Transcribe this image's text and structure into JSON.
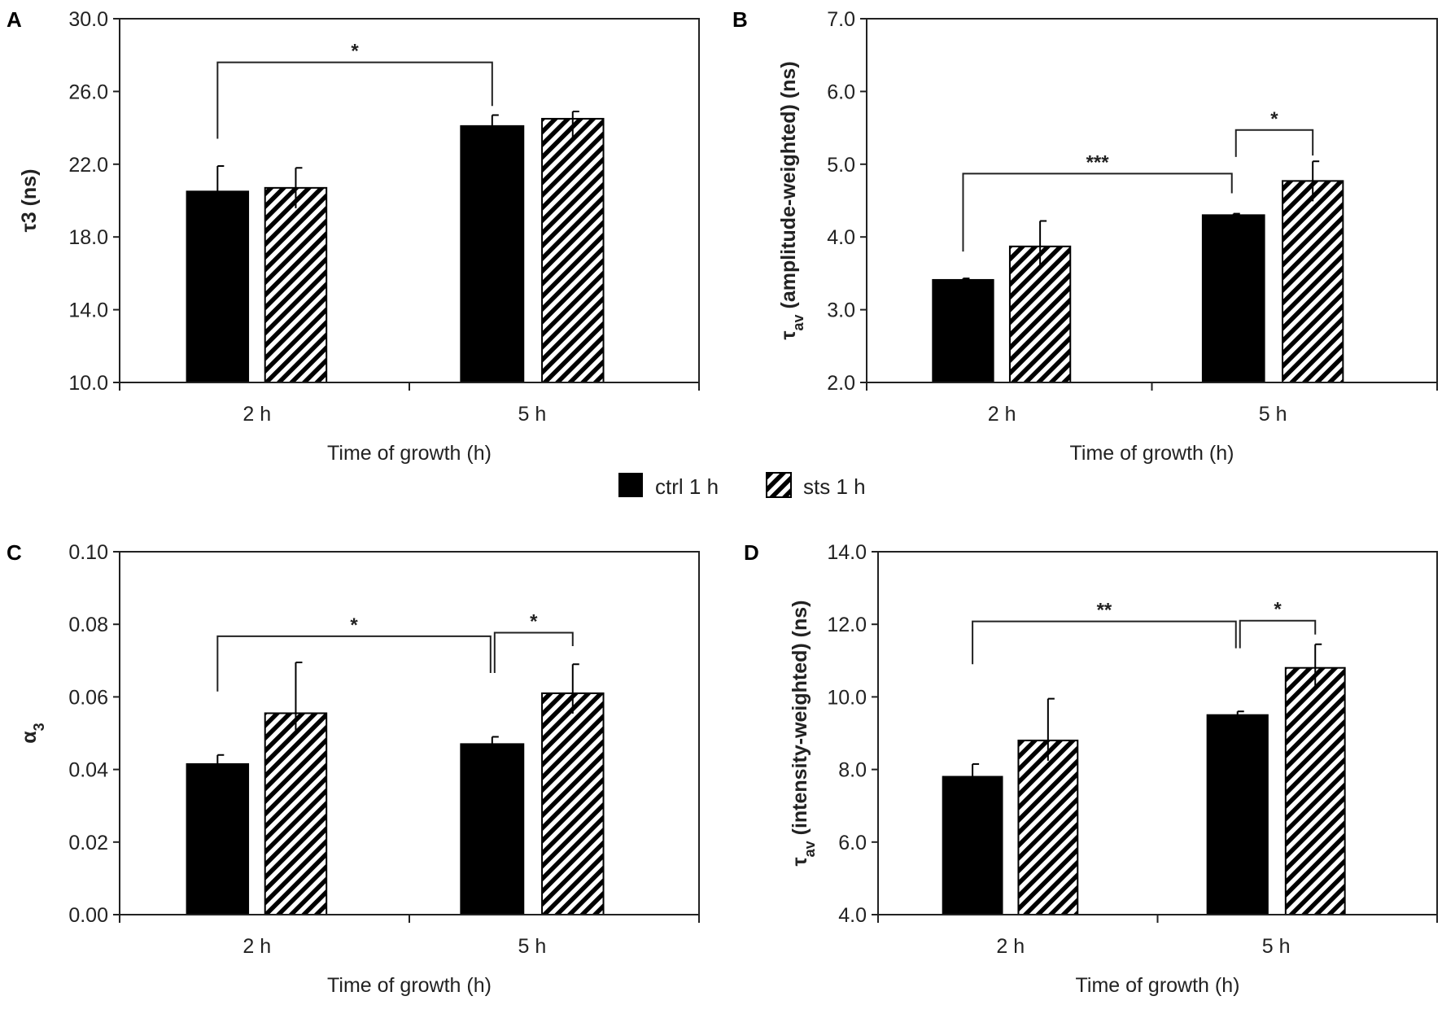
{
  "chart_data": [
    {
      "type": "bar",
      "panel": "A",
      "ylabel": "τ3 (ns)",
      "ylabel_main": "τ",
      "ylabel_sub": "3",
      "ylabel_rest": " (ns)",
      "xlabel": "Time of growth (h)",
      "categories": [
        "2 h",
        "5 h"
      ],
      "ylim": [
        10,
        30
      ],
      "yticks": [
        "10.0",
        "14.0",
        "18.0",
        "22.0",
        "26.0",
        "30.0"
      ],
      "series": [
        {
          "name": "ctrl 1 h",
          "values": [
            20.5,
            24.1
          ],
          "errors": [
            1.4,
            0.6
          ]
        },
        {
          "name": "sts 1 h",
          "values": [
            20.7,
            24.5
          ],
          "errors": [
            1.1,
            0.4
          ]
        }
      ],
      "significance": [
        {
          "from": [
            0,
            0
          ],
          "to": [
            1,
            0
          ],
          "label": "*",
          "level": 27.6,
          "legs": [
            23.4,
            25.2
          ]
        }
      ]
    },
    {
      "type": "bar",
      "panel": "B",
      "ylabel": "τav (amplitude-weighted) (ns)",
      "ylabel_main": "τ",
      "ylabel_sub": "av",
      "ylabel_rest": " (amplitude-weighted) (ns)",
      "xlabel": "Time of growth (h)",
      "categories": [
        "2 h",
        "5 h"
      ],
      "ylim": [
        2,
        7
      ],
      "yticks": [
        "2.0",
        "3.0",
        "4.0",
        "5.0",
        "6.0",
        "7.0"
      ],
      "series": [
        {
          "name": "ctrl 1 h",
          "values": [
            3.41,
            4.3
          ],
          "errors": [
            0.02,
            0.02
          ]
        },
        {
          "name": "sts 1 h",
          "values": [
            3.87,
            4.77
          ],
          "errors": [
            0.35,
            0.27
          ]
        }
      ],
      "significance": [
        {
          "from": [
            0,
            0
          ],
          "to": [
            1,
            0
          ],
          "label": "***",
          "level": 4.87,
          "legs": [
            3.8,
            4.6
          ]
        },
        {
          "from": [
            1,
            0
          ],
          "to": [
            1,
            1
          ],
          "label": "*",
          "level": 5.47,
          "legs": [
            5.1,
            5.12
          ]
        }
      ]
    },
    {
      "type": "bar",
      "panel": "C",
      "ylabel": "α3",
      "ylabel_main": "α",
      "ylabel_sub": "3",
      "ylabel_rest": "",
      "xlabel": "Time of growth (h)",
      "categories": [
        "2 h",
        "5 h"
      ],
      "ylim": [
        0,
        0.1
      ],
      "yticks": [
        "0.00",
        "0.02",
        "0.04",
        "0.06",
        "0.08",
        "0.10"
      ],
      "series": [
        {
          "name": "ctrl 1 h",
          "values": [
            0.0415,
            0.047
          ],
          "errors": [
            0.0025,
            0.002
          ]
        },
        {
          "name": "sts 1 h",
          "values": [
            0.0555,
            0.061
          ],
          "errors": [
            0.014,
            0.008
          ]
        }
      ],
      "significance": [
        {
          "from": [
            0,
            0
          ],
          "to": [
            1,
            0
          ],
          "label": "*",
          "level": 0.0767,
          "legs": [
            0.0615,
            0.0666
          ]
        },
        {
          "from": [
            1,
            0
          ],
          "to": [
            1,
            1
          ],
          "label": "*",
          "level": 0.0777,
          "legs": [
            0.0666,
            0.074
          ]
        }
      ]
    },
    {
      "type": "bar",
      "panel": "D",
      "ylabel": "τav (intensity-weighted) (ns)",
      "ylabel_main": "τ",
      "ylabel_sub": "av",
      "ylabel_rest": " (intensity-weighted) (ns)",
      "xlabel": "Time of growth (h)",
      "categories": [
        "2 h",
        "5 h"
      ],
      "ylim": [
        4,
        14
      ],
      "yticks": [
        "4.0",
        "6.0",
        "8.0",
        "10.0",
        "12.0",
        "14.0"
      ],
      "series": [
        {
          "name": "ctrl 1 h",
          "values": [
            7.8,
            9.5
          ],
          "errors": [
            0.35,
            0.1
          ]
        },
        {
          "name": "sts 1 h",
          "values": [
            8.8,
            10.8
          ],
          "errors": [
            1.15,
            0.65
          ]
        }
      ],
      "significance": [
        {
          "from": [
            0,
            0
          ],
          "to": [
            1,
            0
          ],
          "label": "**",
          "level": 12.08,
          "legs": [
            10.9,
            11.34
          ]
        },
        {
          "from": [
            1,
            0
          ],
          "to": [
            1,
            1
          ],
          "label": "*",
          "level": 12.1,
          "legs": [
            11.34,
            11.72
          ]
        }
      ]
    }
  ],
  "legend": {
    "items": [
      {
        "label": "ctrl 1 h",
        "style": "solid"
      },
      {
        "label": "sts 1 h",
        "style": "hatched"
      }
    ]
  },
  "colors": {
    "bar": "#000000",
    "axis": "#222222"
  }
}
